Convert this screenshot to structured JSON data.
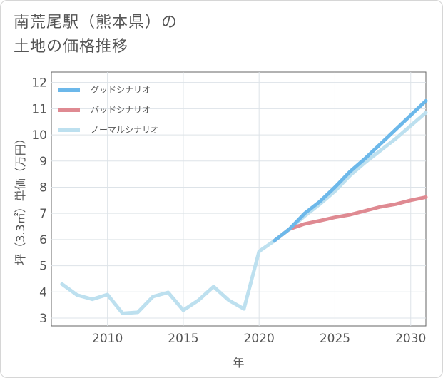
{
  "title": {
    "line1": "南荒尾駅（熊本県）の",
    "line2": "土地の価格推移"
  },
  "chart_data": {
    "type": "line",
    "xlabel": "年",
    "ylabel": "坪（3.3㎡）単価（万円）",
    "xlim": [
      2006.3,
      2031
    ],
    "ylim": [
      2.7,
      12.4
    ],
    "x_ticks": [
      2010,
      2015,
      2020,
      2025,
      2030
    ],
    "y_ticks": [
      3,
      4,
      5,
      6,
      7,
      8,
      9,
      10,
      11,
      12
    ],
    "grid": true,
    "legend_position": "top-left",
    "series": [
      {
        "name": "グッドシナリオ",
        "color": "#6cb8ea",
        "x": [
          2021,
          2022,
          2023,
          2024,
          2025,
          2026,
          2027,
          2028,
          2029,
          2030,
          2031
        ],
        "values": [
          5.95,
          6.4,
          7.0,
          7.45,
          8.0,
          8.6,
          9.1,
          9.65,
          10.2,
          10.75,
          11.3
        ]
      },
      {
        "name": "バッドシナリオ",
        "color": "#df8a92",
        "x": [
          2021,
          2022,
          2023,
          2024,
          2025,
          2026,
          2027,
          2028,
          2029,
          2030,
          2031
        ],
        "values": [
          5.95,
          6.4,
          6.6,
          6.72,
          6.85,
          6.95,
          7.1,
          7.25,
          7.35,
          7.5,
          7.62
        ]
      },
      {
        "name": "ノーマルシナリオ",
        "color": "#bde0ef",
        "x": [
          2007,
          2008,
          2009,
          2010,
          2011,
          2012,
          2013,
          2014,
          2015,
          2016,
          2017,
          2018,
          2019,
          2020,
          2021,
          2022,
          2023,
          2024,
          2025,
          2026,
          2027,
          2028,
          2029,
          2030,
          2031
        ],
        "values": [
          4.3,
          3.88,
          3.72,
          3.9,
          3.18,
          3.22,
          3.82,
          3.98,
          3.3,
          3.68,
          4.2,
          3.68,
          3.35,
          5.55,
          5.95,
          6.4,
          6.9,
          7.35,
          7.85,
          8.45,
          8.95,
          9.4,
          9.85,
          10.35,
          10.85
        ]
      }
    ]
  }
}
